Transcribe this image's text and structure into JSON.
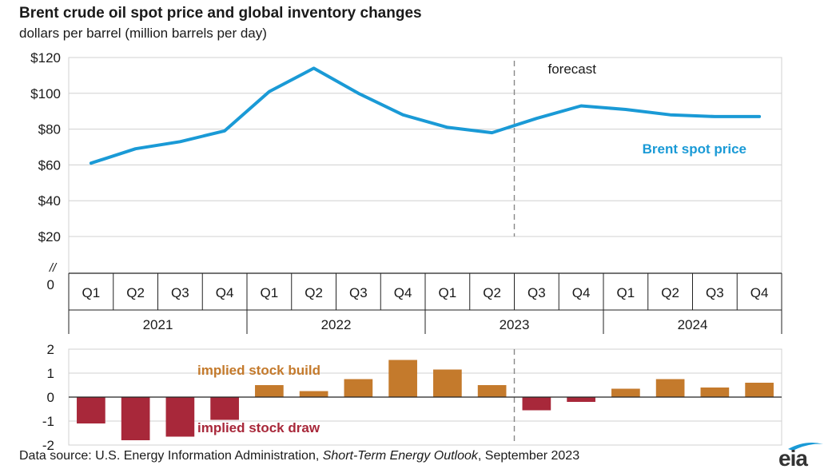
{
  "title": "Brent crude oil spot price and global inventory changes",
  "subtitle": "dollars per barrel (million barrels per day)",
  "source": {
    "prefix": "Data source: U.S. Energy Information Administration, ",
    "publication": "Short-Term Energy Outlook",
    "suffix": ", September 2023"
  },
  "logo": {
    "text": "eia"
  },
  "colors": {
    "price": "#1a9ad6",
    "build": "#c47a2c",
    "draw": "#a8283a",
    "grid": "#d0d0d0",
    "axis": "#222222",
    "forecast_line": "#888888"
  },
  "chart_data": [
    {
      "type": "line",
      "categories": [
        "Q1",
        "Q2",
        "Q3",
        "Q4",
        "Q1",
        "Q2",
        "Q3",
        "Q4",
        "Q1",
        "Q2",
        "Q3",
        "Q4",
        "Q1",
        "Q2",
        "Q3",
        "Q4"
      ],
      "years": [
        "2021",
        "2022",
        "2023",
        "2024"
      ],
      "series": [
        {
          "name": "Brent spot price",
          "values": [
            61,
            69,
            73,
            79,
            101,
            114,
            100,
            88,
            81,
            78,
            86,
            93,
            91,
            88,
            87,
            87
          ]
        }
      ],
      "yticks": [
        "$120",
        "$100",
        "$80",
        "$60",
        "$40",
        "$20",
        "0"
      ],
      "axis_break": "//",
      "ylim": [
        0,
        120
      ],
      "forecast_label": "forecast",
      "forecast_start": "2023 Q3",
      "grid": true
    },
    {
      "type": "bar",
      "categories": [
        "Q1",
        "Q2",
        "Q3",
        "Q4",
        "Q1",
        "Q2",
        "Q3",
        "Q4",
        "Q1",
        "Q2",
        "Q3",
        "Q4",
        "Q1",
        "Q2",
        "Q3",
        "Q4"
      ],
      "values": [
        -1.1,
        -1.8,
        -1.65,
        -0.95,
        0.5,
        0.25,
        0.75,
        1.55,
        1.15,
        0.5,
        -0.55,
        -0.2,
        0.35,
        0.75,
        0.4,
        0.6
      ],
      "yticks": [
        "2",
        "1",
        "0",
        "-1",
        "-2"
      ],
      "ylim": [
        -2,
        2
      ],
      "annotations": {
        "build": "implied stock  build",
        "draw": "implied stock draw"
      },
      "grid": true
    }
  ]
}
